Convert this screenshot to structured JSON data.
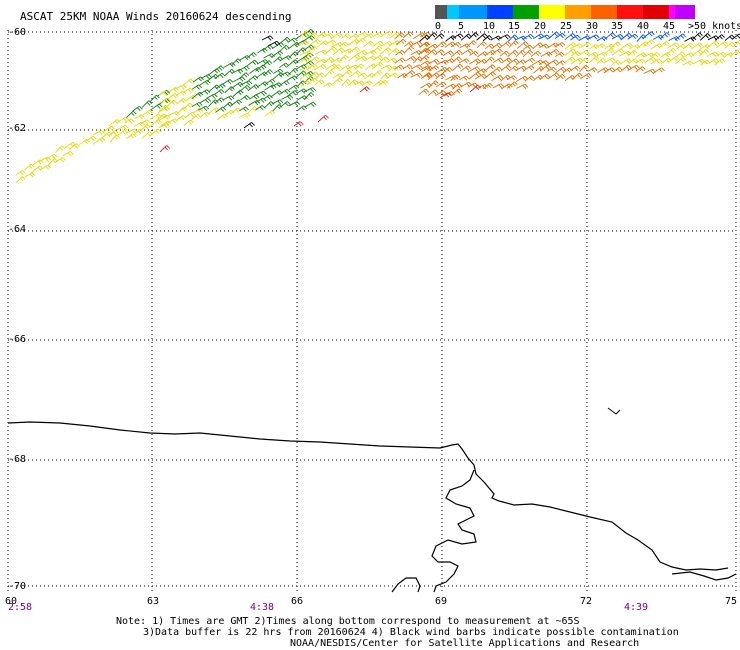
{
  "title": "ASCAT 25KM NOAA Winds 20160624 descending",
  "legend": {
    "labels": [
      "0",
      "5",
      "10",
      "15",
      "20",
      "25",
      "30",
      "35",
      "40",
      "45",
      ">50 knots"
    ],
    "colors": [
      "#555555",
      "#00c8ff",
      "#0096ff",
      "#0040ff",
      "#00a000",
      "#ffff00",
      "#ffa000",
      "#ff6000",
      "#ff1010",
      "#e00000",
      "#ff00ff",
      "#c000ff",
      "#8000c0"
    ]
  },
  "axes": {
    "lat_labels": [
      "-60",
      "-62",
      "-64",
      "-66",
      "-68",
      "-70"
    ],
    "lon_labels": [
      "60",
      "63",
      "66",
      "69",
      "72",
      "75"
    ]
  },
  "times": [
    "2:58",
    "4:38",
    "4:39"
  ],
  "time_color": "#800080",
  "notes": {
    "line1": "Note: 1) Times are GMT 2)Times along bottom correspond to measurement at ~65S",
    "line2": "3)Data buffer is 22 hrs from 20160624 4) Black wind barbs indicate possible contamination",
    "line3": "NOAA/NESDIS/Center for Satellite Applications and Research"
  },
  "colors": {
    "coast": "#000000",
    "grid": "#000000",
    "barb_yellow": "#e8d800",
    "barb_orange": "#e07000",
    "barb_green": "#108010",
    "barb_blue": "#0050ff",
    "barb_red": "#e02020",
    "barb_black": "#000000"
  }
}
